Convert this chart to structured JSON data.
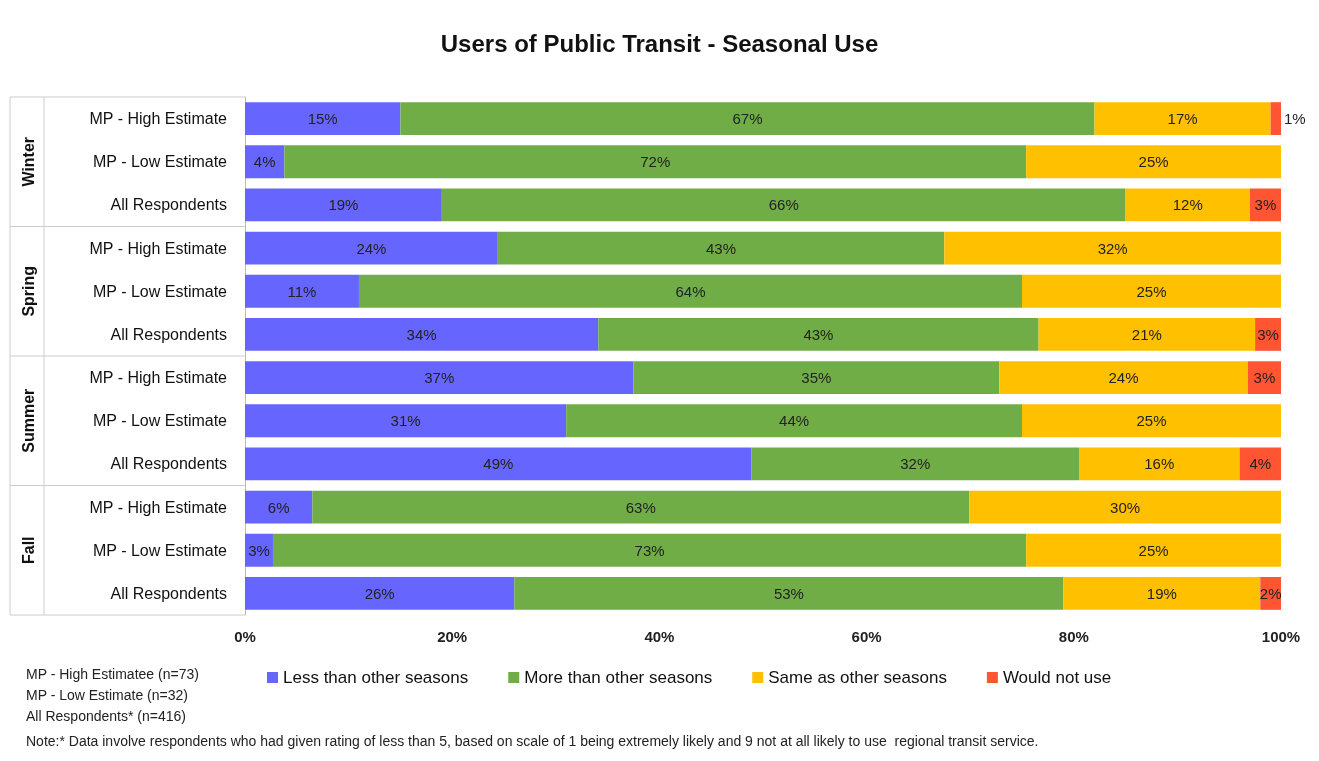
{
  "chart_data": {
    "type": "bar",
    "orientation": "horizontal",
    "stacked": true,
    "title": "Users of Public Transit - Seasonal Use",
    "categories": [
      "MP - High Estimate",
      "MP - Low Estimate",
      "All Respondents",
      "MP - High Estimate",
      "MP - Low Estimate",
      "All Respondents",
      "MP - High Estimate",
      "MP - Low Estimate",
      "All Respondents",
      "MP - High Estimate",
      "MP - Low Estimate",
      "All Respondents"
    ],
    "series": [
      {
        "name": "Less than other seasons",
        "color": "#6666ff",
        "values": [
          15,
          3.8,
          19,
          24.4,
          11,
          34.1,
          37.5,
          31,
          48.9,
          6.5,
          2.7,
          26
        ],
        "value_labels": [
          "15%",
          "4%",
          "19%",
          "24%",
          "11%",
          "34%",
          "37%",
          "31%",
          "49%",
          "6%",
          "3%",
          "26%"
        ]
      },
      {
        "name": "More than other seasons",
        "color": "#70ad47",
        "values": [
          67,
          71.6,
          66,
          43.1,
          64,
          42.5,
          35.3,
          44,
          31.6,
          63.4,
          72.7,
          53
        ],
        "value_labels": [
          "67%",
          "72%",
          "66%",
          "43%",
          "64%",
          "43%",
          "35%",
          "44%",
          "32%",
          "63%",
          "73%",
          "53%"
        ]
      },
      {
        "name": "Same as other seasons",
        "color": "#ffc000",
        "values": [
          17,
          24.6,
          12,
          32.5,
          25,
          20.9,
          24,
          25,
          15.5,
          30.1,
          24.6,
          19
        ],
        "value_labels": [
          "17%",
          "25%",
          "12%",
          "32%",
          "25%",
          "21%",
          "24%",
          "25%",
          "16%",
          "30%",
          "25%",
          "19%"
        ]
      },
      {
        "name": "Would not use",
        "color": "#ff5533",
        "values": [
          1,
          null,
          3,
          null,
          null,
          2.5,
          3.2,
          null,
          4,
          null,
          null,
          2
        ],
        "value_labels": [
          "1%",
          null,
          "3%",
          null,
          null,
          "3%",
          "3%",
          null,
          "4%",
          null,
          null,
          "2%"
        ]
      }
    ],
    "xlim": [
      0,
      100
    ],
    "xticks": [
      {
        "value": 0,
        "label": "0%"
      },
      {
        "value": 20,
        "label": "20%"
      },
      {
        "value": 40,
        "label": "40%"
      },
      {
        "value": 60,
        "label": "60%"
      },
      {
        "value": 80,
        "label": "80%"
      },
      {
        "value": 100,
        "label": "100%"
      }
    ],
    "legend": "bottom",
    "annotations": [
      "Winter",
      "Spring",
      "Summer",
      "Fall",
      "MP - High Estimatee (n=73)",
      "MP - Low Estimate (n=32)",
      "All Respondents* (n=416)",
      "Note:* Data involve respondents who had given rating of less than 5, based on scale of 1 being extremely likely and 9 not at all likely to use  regional transit service."
    ]
  }
}
